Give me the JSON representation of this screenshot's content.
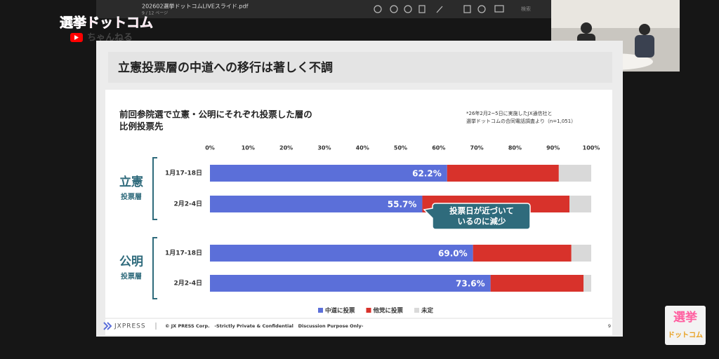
{
  "window": {
    "file": "202602選挙ドットコムLIVEスライド.pdf",
    "page": "9 / 12 ページ",
    "search": "検索"
  },
  "channel": {
    "logo": "選挙ドットコム",
    "sub": "ちゃんねる",
    "corner_top": "選挙",
    "corner_bottom": "ドットコム"
  },
  "slide": {
    "heading": "立憲投票層の中道への移行は著しく不調",
    "footer_brand": "JXPRESS",
    "footer_text": "© JX PRESS Corp.   -Strictly Private & Confidential   Discussion Purpose Only-",
    "page_number": "9"
  },
  "chart_data": {
    "type": "stacked_barh",
    "title": [
      "前回参院選で立憲・公明にそれぞれ投票した層の",
      "比例投票先"
    ],
    "note": [
      "*26年2月2~5日に実施したJX通信社と",
      "選挙ドットコムの合同電話調査より（n=1,051）"
    ],
    "groups": [
      {
        "name": "立憲",
        "sub": "投票層"
      },
      {
        "name": "公明",
        "sub": "投票層"
      }
    ],
    "categories": [
      "1月17-18日",
      "2月2-4日",
      "1月17-18日",
      "2月2-4日"
    ],
    "series": [
      {
        "name": "中道に投票",
        "color": "#5b6fd9",
        "values": [
          62.2,
          55.7,
          69.0,
          73.6
        ],
        "value_labels": [
          "62.2%",
          "55.7%",
          "69.0%",
          "73.6%"
        ]
      },
      {
        "name": "他党に投票",
        "color": "#d8322b",
        "values": [
          29.3,
          38.6,
          25.8,
          24.4
        ]
      },
      {
        "name": "未定",
        "color": "#d9d9d9",
        "values": [
          8.5,
          5.7,
          5.2,
          2.0
        ]
      }
    ],
    "xlim": [
      0,
      100
    ],
    "xticks": [
      {
        "value": 0,
        "label": "0%"
      },
      {
        "value": 10,
        "label": "10%"
      },
      {
        "value": 20,
        "label": "20%"
      },
      {
        "value": 30,
        "label": "30%"
      },
      {
        "value": 40,
        "label": "40%"
      },
      {
        "value": 50,
        "label": "50%"
      },
      {
        "value": 60,
        "label": "60%"
      },
      {
        "value": 70,
        "label": "70%"
      },
      {
        "value": 80,
        "label": "80%"
      },
      {
        "value": 90,
        "label": "90%"
      },
      {
        "value": 100,
        "label": "100%"
      }
    ],
    "annotation": [
      "投票日が近づいて",
      "いるのに減少"
    ]
  }
}
